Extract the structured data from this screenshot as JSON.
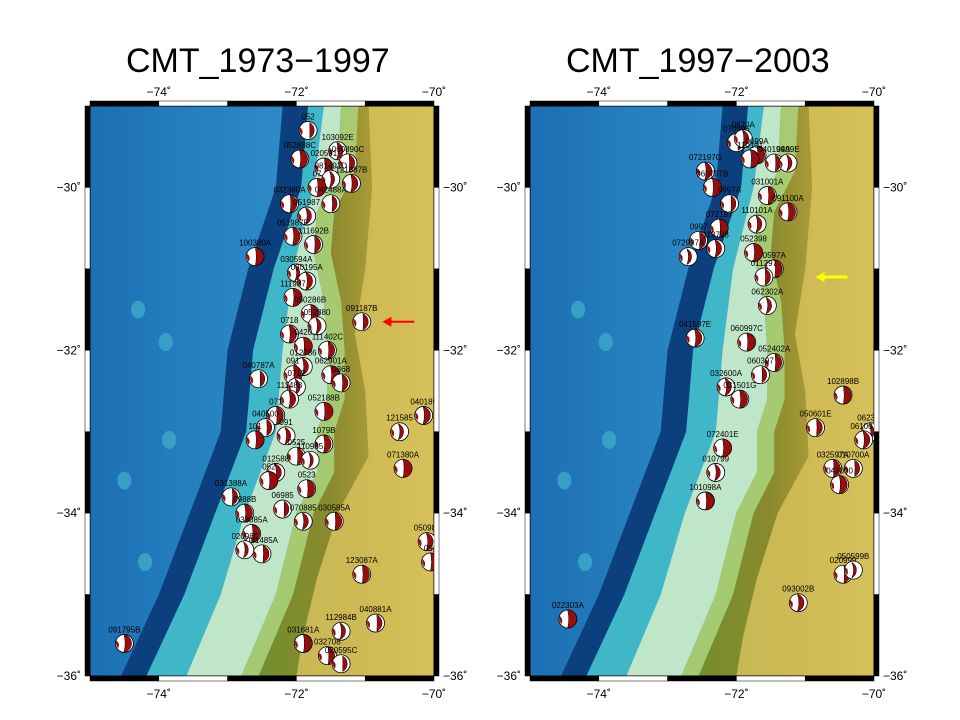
{
  "panels": [
    {
      "title": "CMT_1973−1997",
      "lon_ticks": [
        "−74˚",
        "−72˚",
        "−70˚"
      ],
      "lat_ticks": [
        "−30˚",
        "−32˚",
        "−34˚",
        "−36˚"
      ],
      "arrow_color": "#ff0000",
      "events": [
        {
          "label": "052",
          "lon": -71.83,
          "lat": -29.3
        },
        {
          "label": "103092E",
          "lon": -71.4,
          "lat": -29.55
        },
        {
          "label": "052888C",
          "lon": -71.95,
          "lat": -29.65
        },
        {
          "label": "020591",
          "lon": -71.6,
          "lat": -29.75
        },
        {
          "label": "060890C",
          "lon": -71.25,
          "lat": -29.7
        },
        {
          "label": "081491D",
          "lon": -71.5,
          "lat": -29.9
        },
        {
          "label": "121387B",
          "lon": -71.2,
          "lat": -29.95
        },
        {
          "label": "07",
          "lon": -71.7,
          "lat": -30.0
        },
        {
          "label": "032380A",
          "lon": -72.1,
          "lat": -30.2
        },
        {
          "label": "042488A",
          "lon": -71.5,
          "lat": -30.2
        },
        {
          "label": "051987",
          "lon": -71.85,
          "lat": -30.35
        },
        {
          "label": "051987E",
          "lon": -72.05,
          "lat": -30.6
        },
        {
          "label": "100380A",
          "lon": -72.6,
          "lat": -30.85
        },
        {
          "label": "111692B",
          "lon": -71.75,
          "lat": -30.7
        },
        {
          "label": "030594A",
          "lon": -72.0,
          "lat": -31.05
        },
        {
          "label": "030195A",
          "lon": -71.85,
          "lat": -31.15
        },
        {
          "label": "111987",
          "lon": -72.05,
          "lat": -31.35
        },
        {
          "label": "050286B",
          "lon": -71.8,
          "lat": -31.55
        },
        {
          "label": "091187B",
          "lon": -71.05,
          "lat": -31.65
        },
        {
          "label": "052880",
          "lon": -71.7,
          "lat": -31.7
        },
        {
          "label": "0718",
          "lon": -72.1,
          "lat": -31.8
        },
        {
          "label": "0420",
          "lon": -71.9,
          "lat": -31.95
        },
        {
          "label": "111402C",
          "lon": -71.55,
          "lat": -32.0
        },
        {
          "label": "040787A",
          "lon": -72.55,
          "lat": -32.35
        },
        {
          "label": "012786",
          "lon": -71.9,
          "lat": -32.2
        },
        {
          "label": "062901A",
          "lon": -71.5,
          "lat": -32.3
        },
        {
          "label": "091",
          "lon": -72.05,
          "lat": -32.3
        },
        {
          "label": "0368",
          "lon": -71.35,
          "lat": -32.4
        },
        {
          "label": "0712",
          "lon": -72.0,
          "lat": -32.45
        },
        {
          "label": "111488",
          "lon": -72.1,
          "lat": -32.6
        },
        {
          "label": "052188B",
          "lon": -71.6,
          "lat": -32.75
        },
        {
          "label": "071",
          "lon": -72.3,
          "lat": -32.8
        },
        {
          "label": "040500",
          "lon": -72.45,
          "lat": -32.95
        },
        {
          "label": "091",
          "lon": -72.15,
          "lat": -33.05
        },
        {
          "label": "1079B",
          "lon": -71.6,
          "lat": -33.15
        },
        {
          "label": "101",
          "lon": -72.6,
          "lat": -33.1
        },
        {
          "label": "0525",
          "lon": -72.0,
          "lat": -33.3
        },
        {
          "label": "110985",
          "lon": -71.8,
          "lat": -33.35
        },
        {
          "label": "012588",
          "lon": -72.3,
          "lat": -33.5
        },
        {
          "label": "052",
          "lon": -72.4,
          "lat": -33.6
        },
        {
          "label": "0523",
          "lon": -71.85,
          "lat": -33.7
        },
        {
          "label": "031388A",
          "lon": -72.95,
          "lat": -33.8
        },
        {
          "label": "121585",
          "lon": -70.5,
          "lat": -33.0
        },
        {
          "label": "040189",
          "lon": -70.15,
          "lat": -32.8
        },
        {
          "label": "071380A",
          "lon": -70.45,
          "lat": -33.45
        },
        {
          "label": "030585A",
          "lon": -71.45,
          "lat": -34.1
        },
        {
          "label": "06985",
          "lon": -72.2,
          "lat": -33.95
        },
        {
          "label": "070885",
          "lon": -71.9,
          "lat": -34.1
        },
        {
          "label": "0988B",
          "lon": -72.75,
          "lat": -34.0
        },
        {
          "label": "033085A",
          "lon": -72.65,
          "lat": -34.25
        },
        {
          "label": "081485A",
          "lon": -72.5,
          "lat": -34.5
        },
        {
          "label": "020985",
          "lon": -72.75,
          "lat": -34.45
        },
        {
          "label": "050984",
          "lon": -70.1,
          "lat": -34.35
        },
        {
          "label": "092",
          "lon": -70.05,
          "lat": -34.6
        },
        {
          "label": "123087A",
          "lon": -71.05,
          "lat": -34.75
        },
        {
          "label": "040881A",
          "lon": -70.85,
          "lat": -35.35
        },
        {
          "label": "112984B",
          "lon": -71.35,
          "lat": -35.45
        },
        {
          "label": "091795B",
          "lon": -74.5,
          "lat": -35.6
        },
        {
          "label": "031681A",
          "lon": -71.9,
          "lat": -35.6
        },
        {
          "label": "032708",
          "lon": -71.55,
          "lat": -35.75
        },
        {
          "label": "020595C",
          "lon": -71.35,
          "lat": -35.85
        }
      ]
    },
    {
      "title": "CMT_1997−2003",
      "lon_ticks": [
        "−74˚",
        "−72˚",
        "−70˚"
      ],
      "lat_ticks": [
        "−30˚",
        "−32˚",
        "−34˚",
        "−36˚"
      ],
      "arrow_color": "#ffff00",
      "events": [
        {
          "label": "070995",
          "lon": -72.0,
          "lat": -29.45
        },
        {
          "label": "0620A",
          "lon": -71.9,
          "lat": -29.4
        },
        {
          "label": "0699A",
          "lon": -71.7,
          "lat": -29.6
        },
        {
          "label": "110101",
          "lon": -71.8,
          "lat": -29.65
        },
        {
          "label": "040199A",
          "lon": -71.45,
          "lat": -29.7
        },
        {
          "label": "0499E",
          "lon": -71.25,
          "lat": -29.7
        },
        {
          "label": "072197G",
          "lon": -72.45,
          "lat": -29.8
        },
        {
          "label": "060797B",
          "lon": -72.35,
          "lat": -30.0
        },
        {
          "label": "031001A",
          "lon": -71.55,
          "lat": -30.1
        },
        {
          "label": "0997A",
          "lon": -72.1,
          "lat": -30.2
        },
        {
          "label": "110101A",
          "lon": -71.7,
          "lat": -30.45
        },
        {
          "label": "091100A",
          "lon": -71.25,
          "lat": -30.3
        },
        {
          "label": "072197",
          "lon": -72.25,
          "lat": -30.5
        },
        {
          "label": "0997",
          "lon": -72.55,
          "lat": -30.65
        },
        {
          "label": "072997A",
          "lon": -72.7,
          "lat": -30.85
        },
        {
          "label": "113798",
          "lon": -72.3,
          "lat": -30.75
        },
        {
          "label": "052398",
          "lon": -71.75,
          "lat": -30.8
        },
        {
          "label": "0597A",
          "lon": -71.45,
          "lat": -31.0
        },
        {
          "label": "011297",
          "lon": -71.6,
          "lat": -31.1
        },
        {
          "label": "062302A",
          "lon": -71.55,
          "lat": -31.45
        },
        {
          "label": "041597E",
          "lon": -72.6,
          "lat": -31.85
        },
        {
          "label": "060997C",
          "lon": -71.85,
          "lat": -31.9
        },
        {
          "label": "052402A",
          "lon": -71.45,
          "lat": -32.15
        },
        {
          "label": "060397",
          "lon": -71.65,
          "lat": -32.3
        },
        {
          "label": "032600A",
          "lon": -72.15,
          "lat": -32.45
        },
        {
          "label": "031501G",
          "lon": -71.95,
          "lat": -32.6
        },
        {
          "label": "102898B",
          "lon": -70.45,
          "lat": -32.55
        },
        {
          "label": "050601E",
          "lon": -70.85,
          "lat": -32.95
        },
        {
          "label": "062300",
          "lon": -70.05,
          "lat": -33.0
        },
        {
          "label": "061001",
          "lon": -70.15,
          "lat": -33.1
        },
        {
          "label": "072401E",
          "lon": -72.2,
          "lat": -33.2
        },
        {
          "label": "032597A",
          "lon": -70.6,
          "lat": -33.45
        },
        {
          "label": "010700A",
          "lon": -70.3,
          "lat": -33.45
        },
        {
          "label": "010799",
          "lon": -72.3,
          "lat": -33.5
        },
        {
          "label": "042000",
          "lon": -70.5,
          "lat": -33.65
        },
        {
          "label": "101098A",
          "lon": -72.45,
          "lat": -33.85
        },
        {
          "label": "020999",
          "lon": -70.45,
          "lat": -34.75
        },
        {
          "label": "050599B",
          "lon": -70.3,
          "lat": -34.7
        },
        {
          "label": "093002B",
          "lon": -71.1,
          "lat": -35.1
        },
        {
          "label": "022303A",
          "lon": -74.45,
          "lat": -35.3
        }
      ]
    }
  ]
}
